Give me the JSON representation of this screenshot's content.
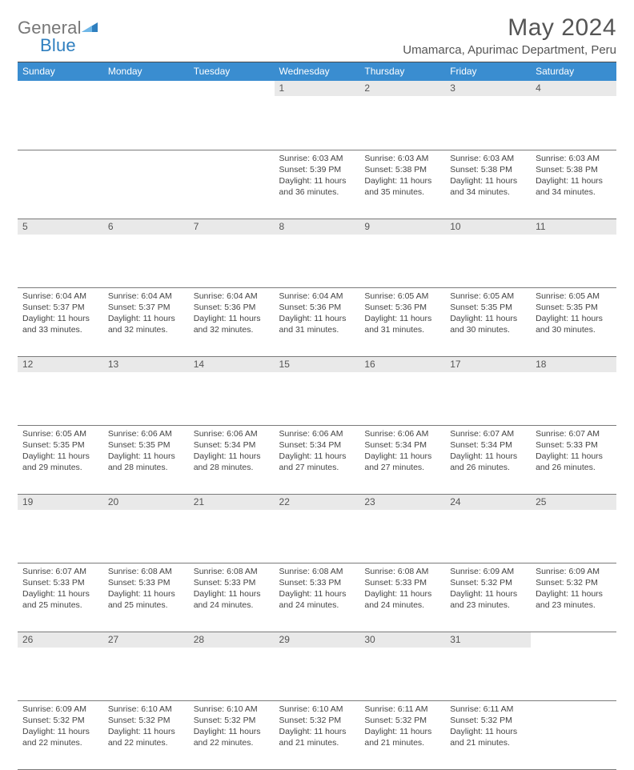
{
  "logo": {
    "general": "General",
    "blue": "Blue"
  },
  "title": "May 2024",
  "location": "Umamarca, Apurimac Department, Peru",
  "header_bg": "#3a8dd0",
  "daynum_bg": "#e9e9e9",
  "weekdays": [
    "Sunday",
    "Monday",
    "Tuesday",
    "Wednesday",
    "Thursday",
    "Friday",
    "Saturday"
  ],
  "weeks": [
    [
      null,
      null,
      null,
      {
        "n": "1",
        "sr": "6:03 AM",
        "ss": "5:39 PM",
        "dl": "11 hours and 36 minutes."
      },
      {
        "n": "2",
        "sr": "6:03 AM",
        "ss": "5:38 PM",
        "dl": "11 hours and 35 minutes."
      },
      {
        "n": "3",
        "sr": "6:03 AM",
        "ss": "5:38 PM",
        "dl": "11 hours and 34 minutes."
      },
      {
        "n": "4",
        "sr": "6:03 AM",
        "ss": "5:38 PM",
        "dl": "11 hours and 34 minutes."
      }
    ],
    [
      {
        "n": "5",
        "sr": "6:04 AM",
        "ss": "5:37 PM",
        "dl": "11 hours and 33 minutes."
      },
      {
        "n": "6",
        "sr": "6:04 AM",
        "ss": "5:37 PM",
        "dl": "11 hours and 32 minutes."
      },
      {
        "n": "7",
        "sr": "6:04 AM",
        "ss": "5:36 PM",
        "dl": "11 hours and 32 minutes."
      },
      {
        "n": "8",
        "sr": "6:04 AM",
        "ss": "5:36 PM",
        "dl": "11 hours and 31 minutes."
      },
      {
        "n": "9",
        "sr": "6:05 AM",
        "ss": "5:36 PM",
        "dl": "11 hours and 31 minutes."
      },
      {
        "n": "10",
        "sr": "6:05 AM",
        "ss": "5:35 PM",
        "dl": "11 hours and 30 minutes."
      },
      {
        "n": "11",
        "sr": "6:05 AM",
        "ss": "5:35 PM",
        "dl": "11 hours and 30 minutes."
      }
    ],
    [
      {
        "n": "12",
        "sr": "6:05 AM",
        "ss": "5:35 PM",
        "dl": "11 hours and 29 minutes."
      },
      {
        "n": "13",
        "sr": "6:06 AM",
        "ss": "5:35 PM",
        "dl": "11 hours and 28 minutes."
      },
      {
        "n": "14",
        "sr": "6:06 AM",
        "ss": "5:34 PM",
        "dl": "11 hours and 28 minutes."
      },
      {
        "n": "15",
        "sr": "6:06 AM",
        "ss": "5:34 PM",
        "dl": "11 hours and 27 minutes."
      },
      {
        "n": "16",
        "sr": "6:06 AM",
        "ss": "5:34 PM",
        "dl": "11 hours and 27 minutes."
      },
      {
        "n": "17",
        "sr": "6:07 AM",
        "ss": "5:34 PM",
        "dl": "11 hours and 26 minutes."
      },
      {
        "n": "18",
        "sr": "6:07 AM",
        "ss": "5:33 PM",
        "dl": "11 hours and 26 minutes."
      }
    ],
    [
      {
        "n": "19",
        "sr": "6:07 AM",
        "ss": "5:33 PM",
        "dl": "11 hours and 25 minutes."
      },
      {
        "n": "20",
        "sr": "6:08 AM",
        "ss": "5:33 PM",
        "dl": "11 hours and 25 minutes."
      },
      {
        "n": "21",
        "sr": "6:08 AM",
        "ss": "5:33 PM",
        "dl": "11 hours and 24 minutes."
      },
      {
        "n": "22",
        "sr": "6:08 AM",
        "ss": "5:33 PM",
        "dl": "11 hours and 24 minutes."
      },
      {
        "n": "23",
        "sr": "6:08 AM",
        "ss": "5:33 PM",
        "dl": "11 hours and 24 minutes."
      },
      {
        "n": "24",
        "sr": "6:09 AM",
        "ss": "5:32 PM",
        "dl": "11 hours and 23 minutes."
      },
      {
        "n": "25",
        "sr": "6:09 AM",
        "ss": "5:32 PM",
        "dl": "11 hours and 23 minutes."
      }
    ],
    [
      {
        "n": "26",
        "sr": "6:09 AM",
        "ss": "5:32 PM",
        "dl": "11 hours and 22 minutes."
      },
      {
        "n": "27",
        "sr": "6:10 AM",
        "ss": "5:32 PM",
        "dl": "11 hours and 22 minutes."
      },
      {
        "n": "28",
        "sr": "6:10 AM",
        "ss": "5:32 PM",
        "dl": "11 hours and 22 minutes."
      },
      {
        "n": "29",
        "sr": "6:10 AM",
        "ss": "5:32 PM",
        "dl": "11 hours and 21 minutes."
      },
      {
        "n": "30",
        "sr": "6:11 AM",
        "ss": "5:32 PM",
        "dl": "11 hours and 21 minutes."
      },
      {
        "n": "31",
        "sr": "6:11 AM",
        "ss": "5:32 PM",
        "dl": "11 hours and 21 minutes."
      },
      null
    ]
  ],
  "labels": {
    "sunrise": "Sunrise:",
    "sunset": "Sunset:",
    "daylight": "Daylight:"
  }
}
